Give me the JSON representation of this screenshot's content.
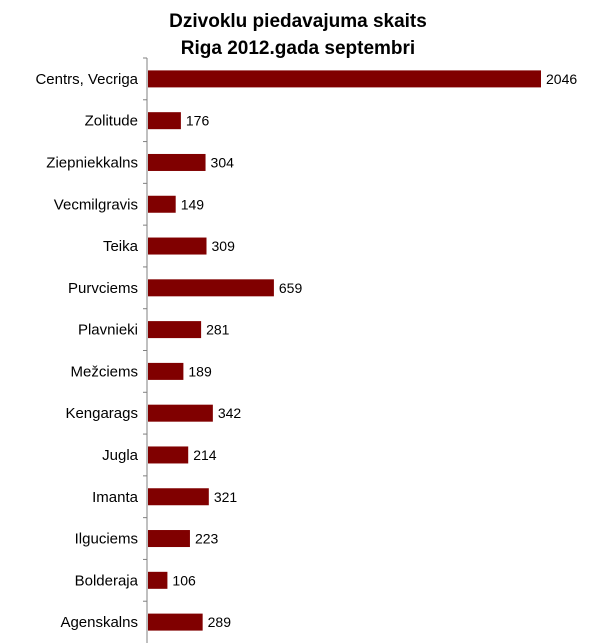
{
  "chart_data": {
    "type": "bar",
    "orientation": "horizontal",
    "title": [
      "Dzivoklu piedavajuma skaits",
      "Riga 2012.gada septembri"
    ],
    "categories": [
      "Centrs, Vecriga",
      "Zolitude",
      "Ziepniekkalns",
      "Vecmilgravis",
      "Teika",
      "Purvciems",
      "Plavnieki",
      "Mežciems",
      "Kengarags",
      "Jugla",
      "Imanta",
      "Ilguciems",
      "Bolderaja",
      "Agenskalns"
    ],
    "values": [
      2046,
      176,
      304,
      149,
      309,
      659,
      281,
      189,
      342,
      214,
      321,
      223,
      106,
      289
    ],
    "xlim": [
      0,
      2046
    ],
    "grid": false,
    "legend": "none",
    "colors": {
      "bar": "#800000",
      "axis": "#808080",
      "text": "#000000"
    }
  }
}
